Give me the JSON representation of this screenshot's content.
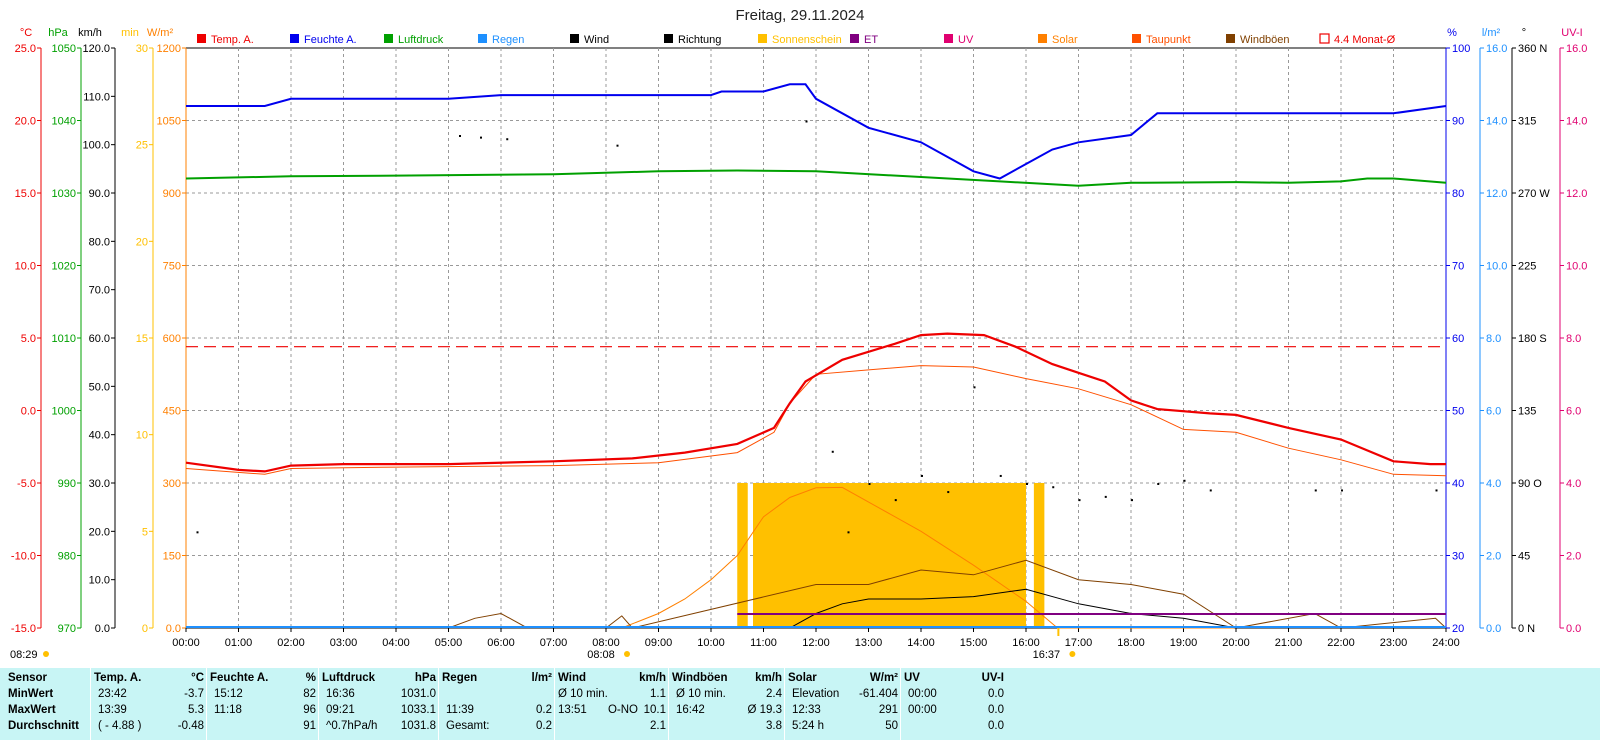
{
  "title": "Freitag, 29.11.2024",
  "colors": {
    "temp": "#ee0000",
    "humidity": "#0000ee",
    "pressure": "#00a000",
    "rain": "#1e90ff",
    "wind": "#000000",
    "sunshine": "#ffc000",
    "et": "#800080",
    "uv": "#e00070",
    "solar": "#ff8000",
    "dewpoint": "#ff5000",
    "gust": "#804000",
    "avg4m": "#ee0000",
    "statsbg": "#c8f5f5"
  },
  "legend": [
    {
      "label": "Temp. A.",
      "key": "temp"
    },
    {
      "label": "Feuchte A.",
      "key": "humidity"
    },
    {
      "label": "Luftdruck",
      "key": "pressure"
    },
    {
      "label": "Regen",
      "key": "rain"
    },
    {
      "label": "Wind",
      "key": "wind"
    },
    {
      "label": "Richtung",
      "key": "wind"
    },
    {
      "label": "Sonnenschein",
      "key": "sunshine"
    },
    {
      "label": "ET",
      "key": "et"
    },
    {
      "label": "UV",
      "key": "uv"
    },
    {
      "label": "Solar",
      "key": "solar"
    },
    {
      "label": "Taupunkt",
      "key": "dewpoint"
    },
    {
      "label": "Windböen",
      "key": "gust"
    },
    {
      "label": "4.4 Monat-Ø",
      "key": "avg4m"
    }
  ],
  "axes_left": [
    {
      "unit": "°C",
      "key": "temp",
      "ticks": [
        "25.0",
        "20.0",
        "15.0",
        "10.0",
        "5.0",
        "0.0",
        "-5.0",
        "-10.0",
        "-15.0"
      ]
    },
    {
      "unit": "hPa",
      "key": "pressure",
      "ticks": [
        "1050",
        "1040",
        "1030",
        "1020",
        "1010",
        "1000",
        "990",
        "980",
        "970"
      ]
    },
    {
      "unit": "km/h",
      "key": "wind",
      "ticks": [
        "120.0",
        "110.0",
        "100.0",
        "90.0",
        "80.0",
        "70.0",
        "60.0",
        "50.0",
        "40.0",
        "30.0",
        "20.0",
        "10.0",
        "0.0"
      ]
    },
    {
      "unit": "min",
      "key": "sunshine",
      "ticks": [
        "30",
        "25",
        "20",
        "15",
        "10",
        "5",
        "0"
      ]
    },
    {
      "unit": "W/m²",
      "key": "solar",
      "ticks": [
        "1200",
        "1050",
        "900",
        "750",
        "600",
        "450",
        "300",
        "150",
        "0.0"
      ]
    }
  ],
  "axes_right": [
    {
      "unit": "%",
      "key": "humidity",
      "ticks": [
        "100",
        "90",
        "80",
        "70",
        "60",
        "50",
        "40",
        "30",
        "20"
      ]
    },
    {
      "unit": "l/m²",
      "key": "rain",
      "ticks": [
        "16.0",
        "14.0",
        "12.0",
        "10.0",
        "8.0",
        "6.0",
        "4.0",
        "2.0",
        "0.0"
      ]
    },
    {
      "unit": "°",
      "key": "wind",
      "ticks": [
        "360 N",
        "315",
        "270 W",
        "225",
        "180 S",
        "135",
        "90 O",
        "45",
        "0 N"
      ]
    },
    {
      "unit": "UV-I",
      "key": "uv",
      "ticks": [
        "16.0",
        "14.0",
        "12.0",
        "10.0",
        "8.0",
        "6.0",
        "4.0",
        "2.0",
        "0.0"
      ]
    }
  ],
  "x_ticks": [
    "00:00",
    "01:00",
    "02:00",
    "03:00",
    "04:00",
    "05:00",
    "06:00",
    "07:00",
    "08:00",
    "09:00",
    "10:00",
    "11:00",
    "12:00",
    "13:00",
    "14:00",
    "15:00",
    "16:00",
    "17:00",
    "18:00",
    "19:00",
    "20:00",
    "21:00",
    "22:00",
    "23:00",
    "24:00"
  ],
  "marks": {
    "sunrise": "08:08",
    "sunset": "16:37",
    "day_start": "08:29"
  },
  "chart_data": {
    "type": "line",
    "x_unit": "hours",
    "series": [
      {
        "name": "Temp. A.",
        "unit": "°C",
        "points": [
          [
            0,
            -3.6
          ],
          [
            1,
            -4.1
          ],
          [
            1.5,
            -4.2
          ],
          [
            2,
            -3.8
          ],
          [
            3,
            -3.7
          ],
          [
            5,
            -3.7
          ],
          [
            7,
            -3.5
          ],
          [
            8.5,
            -3.3
          ],
          [
            9.5,
            -2.9
          ],
          [
            10.5,
            -2.3
          ],
          [
            11.2,
            -1.2
          ],
          [
            11.5,
            0.5
          ],
          [
            11.8,
            2.0
          ],
          [
            12.5,
            3.5
          ],
          [
            13.5,
            4.6
          ],
          [
            14,
            5.2
          ],
          [
            14.5,
            5.3
          ],
          [
            15.2,
            5.2
          ],
          [
            15.8,
            4.4
          ],
          [
            16.5,
            3.2
          ],
          [
            17,
            2.6
          ],
          [
            17.5,
            2.0
          ],
          [
            18,
            0.7
          ],
          [
            18.5,
            0.1
          ],
          [
            19.5,
            -0.2
          ],
          [
            20,
            -0.3
          ],
          [
            21,
            -1.2
          ],
          [
            22,
            -2.0
          ],
          [
            23,
            -3.5
          ],
          [
            23.7,
            -3.7
          ],
          [
            24,
            -3.7
          ]
        ]
      },
      {
        "name": "Taupunkt",
        "unit": "°C",
        "points": [
          [
            0,
            -4.0
          ],
          [
            1.5,
            -4.4
          ],
          [
            2,
            -4.0
          ],
          [
            4,
            -3.9
          ],
          [
            7,
            -3.8
          ],
          [
            9,
            -3.6
          ],
          [
            10.5,
            -2.9
          ],
          [
            11.2,
            -1.5
          ],
          [
            11.5,
            0.5
          ],
          [
            12,
            2.5
          ],
          [
            13,
            2.8
          ],
          [
            14,
            3.1
          ],
          [
            15,
            3.0
          ],
          [
            16,
            2.2
          ],
          [
            17,
            1.5
          ],
          [
            18,
            0.4
          ],
          [
            19,
            -1.3
          ],
          [
            20,
            -1.5
          ],
          [
            21,
            -2.6
          ],
          [
            22,
            -3.4
          ],
          [
            23,
            -4.4
          ],
          [
            24,
            -4.5
          ]
        ]
      },
      {
        "name": "Feuchte A.",
        "unit": "%",
        "points": [
          [
            0,
            92
          ],
          [
            1.5,
            92
          ],
          [
            2,
            93
          ],
          [
            5,
            93
          ],
          [
            6,
            93.5
          ],
          [
            10,
            93.5
          ],
          [
            10.2,
            94
          ],
          [
            11,
            94
          ],
          [
            11.5,
            95
          ],
          [
            11.8,
            95
          ],
          [
            12,
            93
          ],
          [
            13,
            89
          ],
          [
            14,
            87
          ],
          [
            15,
            83
          ],
          [
            15.5,
            82
          ],
          [
            16,
            84
          ],
          [
            16.5,
            86
          ],
          [
            17,
            87
          ],
          [
            18,
            88
          ],
          [
            18.5,
            91
          ],
          [
            19,
            91
          ],
          [
            20,
            91
          ],
          [
            21,
            91
          ],
          [
            22,
            91
          ],
          [
            23,
            91
          ],
          [
            24,
            92
          ]
        ]
      },
      {
        "name": "Luftdruck",
        "unit": "hPa",
        "points": [
          [
            0,
            1032.0
          ],
          [
            2,
            1032.3
          ],
          [
            4,
            1032.4
          ],
          [
            7,
            1032.6
          ],
          [
            9,
            1033.0
          ],
          [
            10.5,
            1033.1
          ],
          [
            12,
            1033.0
          ],
          [
            14,
            1032.2
          ],
          [
            15.5,
            1031.6
          ],
          [
            17,
            1031.0
          ],
          [
            18,
            1031.4
          ],
          [
            20,
            1031.5
          ],
          [
            21,
            1031.4
          ],
          [
            22,
            1031.6
          ],
          [
            22.5,
            1032.0
          ],
          [
            23,
            1032.0
          ],
          [
            24,
            1031.4
          ]
        ]
      },
      {
        "name": "Solar",
        "unit": "W/m²",
        "points": [
          [
            0,
            0
          ],
          [
            8.3,
            0
          ],
          [
            9,
            30
          ],
          [
            9.5,
            60
          ],
          [
            10,
            100
          ],
          [
            10.5,
            150
          ],
          [
            11,
            230
          ],
          [
            11.5,
            270
          ],
          [
            12,
            290
          ],
          [
            12.5,
            291
          ],
          [
            14,
            200
          ],
          [
            15,
            130
          ],
          [
            16,
            55
          ],
          [
            16.6,
            0
          ],
          [
            24,
            0
          ]
        ]
      },
      {
        "name": "Wind",
        "unit": "km/h",
        "points": [
          [
            0,
            0
          ],
          [
            5,
            0
          ],
          [
            6,
            0
          ],
          [
            6.5,
            0
          ],
          [
            11.5,
            0
          ],
          [
            12,
            3
          ],
          [
            12.5,
            5
          ],
          [
            13,
            6
          ],
          [
            14,
            6
          ],
          [
            15,
            6.5
          ],
          [
            16,
            8
          ],
          [
            17,
            5
          ],
          [
            18,
            3
          ],
          [
            19,
            2
          ],
          [
            20,
            0
          ],
          [
            24,
            0
          ]
        ]
      },
      {
        "name": "Windböen",
        "unit": "km/h",
        "points": [
          [
            0,
            0
          ],
          [
            5,
            0
          ],
          [
            5.5,
            2
          ],
          [
            6,
            3
          ],
          [
            6.5,
            0
          ],
          [
            8,
            0
          ],
          [
            8.3,
            2.5
          ],
          [
            8.5,
            0
          ],
          [
            12,
            9
          ],
          [
            13,
            9
          ],
          [
            14,
            12
          ],
          [
            15,
            11
          ],
          [
            16,
            14
          ],
          [
            17,
            10
          ],
          [
            18,
            9
          ],
          [
            19,
            7
          ],
          [
            20,
            0
          ],
          [
            21.5,
            3
          ],
          [
            22,
            0
          ],
          [
            23.8,
            2
          ],
          [
            24,
            0
          ]
        ]
      },
      {
        "name": "4.4 Monat-Ø",
        "unit": "°C",
        "points": [
          [
            0,
            4.4
          ],
          [
            24,
            4.4
          ]
        ]
      }
    ],
    "xlim": [
      0,
      24
    ],
    "ylim_temp": [
      -15,
      25
    ],
    "ylim_humidity": [
      20,
      100
    ],
    "ylim_pressure": [
      970,
      1050
    ],
    "ylim_solar": [
      0,
      1200
    ],
    "ylim_wind": [
      0,
      120
    ],
    "grid": true
  },
  "stats": {
    "headers": [
      {
        "label": "Sensor",
        "unit": ""
      },
      {
        "label": "Temp. A.",
        "unit": "°C"
      },
      {
        "label": "Feuchte A.",
        "unit": "%"
      },
      {
        "label": "Luftdruck",
        "unit": "hPa"
      },
      {
        "label": "Regen",
        "unit": "l/m²"
      },
      {
        "label": "Wind",
        "unit": "km/h"
      },
      {
        "label": "Windböen",
        "unit": "km/h"
      },
      {
        "label": "Solar",
        "unit": "W/m²"
      },
      {
        "label": "UV",
        "unit": "UV-I"
      }
    ],
    "row_labels": [
      "MinWert",
      "MaxWert",
      "Durchschnitt"
    ],
    "temp": [
      [
        "23:42",
        "-3.7"
      ],
      [
        "13:39",
        "5.3"
      ],
      [
        "( - 4.88 )",
        "-0.48"
      ]
    ],
    "humidity": [
      [
        "15:12",
        "82"
      ],
      [
        "11:18",
        "96"
      ],
      [
        "",
        "91"
      ]
    ],
    "pressure": [
      [
        "16:36",
        "1031.0"
      ],
      [
        "09:21",
        "1033.1"
      ],
      [
        "^0.7hPa/h",
        "1031.8"
      ]
    ],
    "rain": [
      [
        "",
        ""
      ],
      [
        "11:39",
        "0.2"
      ],
      [
        "Gesamt:",
        "0.2"
      ]
    ],
    "wind": [
      [
        "Ø 10 min.",
        "",
        "1.1"
      ],
      [
        "13:51",
        "O-NO",
        "10.1"
      ],
      [
        "",
        "",
        "2.1"
      ]
    ],
    "gust": [
      [
        "Ø 10 min.",
        "2.4"
      ],
      [
        "16:42",
        "Ø 19.3"
      ],
      [
        "",
        "3.8"
      ]
    ],
    "solar": [
      [
        "Elevation",
        "-61.404"
      ],
      [
        "12:33",
        "291"
      ],
      [
        "5:24 h",
        "50"
      ]
    ],
    "uv": [
      [
        "00:00",
        "0.0"
      ],
      [
        "00:00",
        "0.0"
      ],
      [
        "",
        "0.0"
      ]
    ]
  }
}
